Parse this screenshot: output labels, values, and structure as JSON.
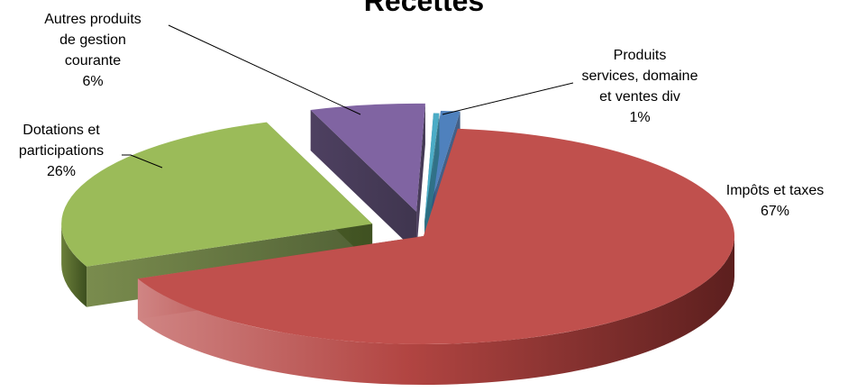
{
  "chart_data": {
    "type": "pie",
    "title": "Recettes",
    "three_d": true,
    "exploded": true,
    "categories": [
      "Impôts et taxes",
      "Dotations et participations",
      "Autres produits de gestion courante",
      "Produits services, domaine et ventes div",
      ""
    ],
    "values": [
      67,
      26,
      6,
      1,
      0.3
    ],
    "data_labels": [
      {
        "lines": [
          "Impôts et taxes",
          "67%"
        ]
      },
      {
        "lines": [
          "Dotations et",
          "participations",
          "26%"
        ]
      },
      {
        "lines": [
          "Autres produits",
          "de gestion",
          "courante",
          "6%"
        ]
      },
      {
        "lines": [
          "Produits",
          "services, domaine",
          "et ventes div",
          "1%"
        ]
      }
    ],
    "colors": [
      "#C0504D",
      "#9BBB59",
      "#8064A2",
      "#4F81BD",
      "#4BACC6"
    ],
    "legend": "none"
  }
}
